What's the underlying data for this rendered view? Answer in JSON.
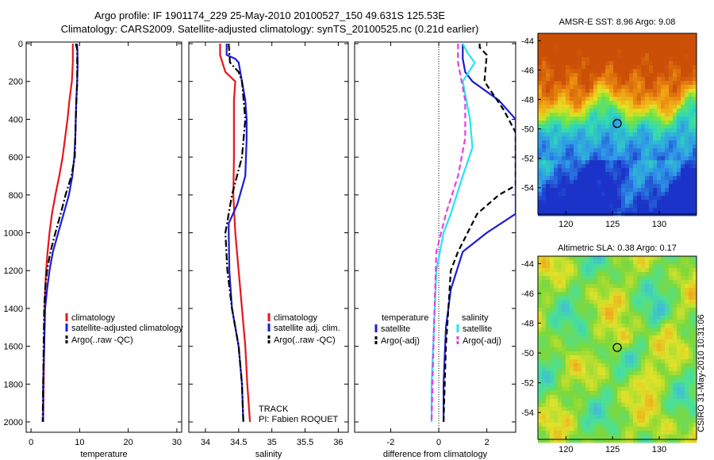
{
  "header": {
    "title_line1": "Argo profile: IF 1901174_229 25-May-2010 20100527_150 49.631S 125.53E",
    "title_line2": "Climatology: CARS2009. Satellite-adjusted climatology: synTS_20100525.nc (0.21d earlier)"
  },
  "sidebar": {
    "stamp": "CSIRO 31-May-2010 10:31:06"
  },
  "colors": {
    "red": "#e8141b",
    "blue": "#1c1cd6",
    "black": "#000000",
    "cyan": "#22e6f0",
    "magenta": "#e83be8"
  },
  "chart_data": [
    {
      "id": "temperature",
      "type": "line",
      "xlabel": "temperature",
      "ylabel": "",
      "xlim": [
        -1,
        31
      ],
      "ylim": [
        2050,
        0
      ],
      "xticks": [
        0,
        10,
        20,
        30
      ],
      "yticks": [
        0,
        200,
        400,
        600,
        800,
        1000,
        1200,
        1400,
        1600,
        1800,
        2000
      ],
      "legend": {
        "position": "lower-right",
        "entries": [
          "climatology",
          "satellite-adjusted climatology",
          "Argo(..raw -QC)"
        ]
      },
      "series": [
        {
          "name": "climatology",
          "color": "red",
          "dash": "solid",
          "points": [
            [
              8.6,
              0
            ],
            [
              8.6,
              100
            ],
            [
              8.4,
              200
            ],
            [
              7.9,
              300
            ],
            [
              7.5,
              400
            ],
            [
              7.0,
              500
            ],
            [
              6.5,
              600
            ],
            [
              5.8,
              700
            ],
            [
              5.0,
              800
            ],
            [
              4.3,
              900
            ],
            [
              3.8,
              1000
            ],
            [
              3.4,
              1100
            ],
            [
              3.1,
              1200
            ],
            [
              2.9,
              1300
            ],
            [
              2.8,
              1400
            ],
            [
              2.7,
              1600
            ],
            [
              2.6,
              1800
            ],
            [
              2.5,
              2000
            ]
          ]
        },
        {
          "name": "satellite-adjusted climatology",
          "color": "blue",
          "dash": "solid",
          "points": [
            [
              9.5,
              0
            ],
            [
              9.6,
              100
            ],
            [
              9.5,
              200
            ],
            [
              9.3,
              300
            ],
            [
              9.2,
              400
            ],
            [
              9.1,
              500
            ],
            [
              8.9,
              600
            ],
            [
              8.5,
              700
            ],
            [
              7.8,
              800
            ],
            [
              6.7,
              900
            ],
            [
              5.6,
              1000
            ],
            [
              4.5,
              1100
            ],
            [
              3.8,
              1200
            ],
            [
              3.3,
              1300
            ],
            [
              2.9,
              1400
            ],
            [
              2.7,
              1600
            ],
            [
              2.5,
              1800
            ],
            [
              2.5,
              2000
            ]
          ]
        },
        {
          "name": "Argo(..raw -QC)",
          "color": "black",
          "dash": "dashdot",
          "points": [
            [
              9.2,
              0
            ],
            [
              9.5,
              30
            ],
            [
              9.5,
              200
            ],
            [
              9.2,
              400
            ],
            [
              9.0,
              600
            ],
            [
              8.3,
              700
            ],
            [
              7.1,
              800
            ],
            [
              6.1,
              900
            ],
            [
              5.0,
              1000
            ],
            [
              4.0,
              1100
            ],
            [
              3.3,
              1200
            ],
            [
              2.9,
              1300
            ],
            [
              2.7,
              1400
            ],
            [
              2.6,
              1600
            ],
            [
              2.5,
              1800
            ],
            [
              2.4,
              2000
            ]
          ]
        }
      ]
    },
    {
      "id": "salinity",
      "type": "line",
      "xlabel": "salinity",
      "ylabel": "",
      "xlim": [
        33.75,
        36.15
      ],
      "ylim": [
        2050,
        0
      ],
      "xticks": [
        34,
        34.5,
        35,
        35.5,
        36
      ],
      "legend": {
        "position": "lower-right",
        "entries": [
          "climatology",
          "satellite adj. clim.",
          "Argo(..raw -QC)"
        ]
      },
      "annotations": [
        "TRACK",
        "PI: Fabien ROQUET"
      ],
      "series": [
        {
          "name": "climatology",
          "color": "red",
          "dash": "solid",
          "points": [
            [
              34.22,
              0
            ],
            [
              34.22,
              60
            ],
            [
              34.3,
              150
            ],
            [
              34.45,
              200
            ],
            [
              34.43,
              300
            ],
            [
              34.43,
              600
            ],
            [
              34.42,
              800
            ],
            [
              34.45,
              1000
            ],
            [
              34.5,
              1200
            ],
            [
              34.55,
              1400
            ],
            [
              34.6,
              1600
            ],
            [
              34.63,
              1800
            ],
            [
              34.67,
              2000
            ]
          ]
        },
        {
          "name": "satellite adj. clim.",
          "color": "blue",
          "dash": "solid",
          "points": [
            [
              34.32,
              0
            ],
            [
              34.32,
              60
            ],
            [
              34.45,
              80
            ],
            [
              34.5,
              100
            ],
            [
              34.55,
              200
            ],
            [
              34.6,
              300
            ],
            [
              34.62,
              400
            ],
            [
              34.62,
              500
            ],
            [
              34.6,
              700
            ],
            [
              34.48,
              850
            ],
            [
              34.35,
              950
            ],
            [
              34.35,
              1000
            ],
            [
              34.36,
              1200
            ],
            [
              34.4,
              1400
            ],
            [
              34.5,
              1600
            ],
            [
              34.55,
              1800
            ],
            [
              34.57,
              2000
            ]
          ]
        },
        {
          "name": "Argo(..raw -QC)",
          "color": "black",
          "dash": "dashdot",
          "points": [
            [
              34.35,
              0
            ],
            [
              34.37,
              100
            ],
            [
              34.5,
              150
            ],
            [
              34.55,
              200
            ],
            [
              34.6,
              400
            ],
            [
              34.55,
              600
            ],
            [
              34.4,
              800
            ],
            [
              34.3,
              1000
            ],
            [
              34.33,
              1200
            ],
            [
              34.4,
              1400
            ],
            [
              34.5,
              1600
            ],
            [
              34.55,
              1800
            ],
            [
              34.57,
              2000
            ]
          ]
        }
      ]
    },
    {
      "id": "difference",
      "type": "line",
      "xlabel": "difference from climatology",
      "ylabel": "",
      "xlim": [
        -3.5,
        3.2
      ],
      "ylim": [
        2050,
        0
      ],
      "xticks": [
        -2,
        0,
        2
      ],
      "legend": {
        "position": "lower-center",
        "temperature_title": "temperature",
        "salinity_title": "salinity",
        "entries": [
          "satellite",
          "Argo(-adj)",
          "satellite",
          "Argo(-adj)"
        ]
      },
      "series": [
        {
          "name": "temperature satellite",
          "color": "blue",
          "dash": "solid",
          "points": [
            [
              1.0,
              0
            ],
            [
              1.0,
              80
            ],
            [
              1.1,
              150
            ],
            [
              1.4,
              200
            ],
            [
              2.5,
              300
            ],
            [
              3.2,
              400
            ],
            [
              3.2,
              900
            ],
            [
              2.0,
              1000
            ],
            [
              1.0,
              1100
            ],
            [
              0.5,
              1300
            ],
            [
              0.3,
              1500
            ],
            [
              0.2,
              1800
            ],
            [
              0.2,
              2000
            ]
          ]
        },
        {
          "name": "temperature Argo(-adj)",
          "color": "black",
          "dash": "dashed",
          "points": [
            [
              1.7,
              0
            ],
            [
              1.7,
              20
            ],
            [
              2.0,
              60
            ],
            [
              1.9,
              200
            ],
            [
              2.7,
              350
            ],
            [
              3.2,
              470
            ],
            [
              3.2,
              750
            ],
            [
              2.5,
              800
            ],
            [
              1.6,
              900
            ],
            [
              0.8,
              1100
            ],
            [
              0.5,
              1200
            ],
            [
              0.4,
              1400
            ],
            [
              0.3,
              1600
            ],
            [
              0.2,
              2000
            ]
          ]
        },
        {
          "name": "salinity satellite",
          "color": "cyan",
          "dash": "solid",
          "points": [
            [
              1.0,
              0
            ],
            [
              1.2,
              50
            ],
            [
              1.5,
              100
            ],
            [
              1.0,
              200
            ],
            [
              1.3,
              400
            ],
            [
              1.4,
              550
            ],
            [
              1.0,
              700
            ],
            [
              0.5,
              900
            ],
            [
              0.2,
              1000
            ],
            [
              -0.1,
              1200
            ],
            [
              -0.2,
              1500
            ],
            [
              -0.3,
              1800
            ],
            [
              -0.3,
              2000
            ]
          ]
        },
        {
          "name": "salinity Argo(-adj)",
          "color": "magenta",
          "dash": "dashed",
          "points": [
            [
              0.8,
              0
            ],
            [
              0.8,
              100
            ],
            [
              1.1,
              300
            ],
            [
              1.1,
              500
            ],
            [
              0.8,
              700
            ],
            [
              0.3,
              900
            ],
            [
              -0.1,
              1100
            ],
            [
              -0.2,
              1500
            ],
            [
              -0.3,
              2000
            ]
          ]
        }
      ]
    },
    {
      "id": "sst_map",
      "type": "heatmap",
      "title": "AMSR-E SST: 8.96 Argo: 9.08",
      "xlim": [
        117,
        134
      ],
      "ylim": [
        -55.8,
        -43.5
      ],
      "xticks": [
        120,
        125,
        130
      ],
      "yticks": [
        -44,
        -46,
        -48,
        -50,
        -52,
        -54
      ],
      "marker": [
        125.5,
        -49.63
      ],
      "colormap": [
        "#1b33c8",
        "#2f98e8",
        "#2fd9b9",
        "#78e43b",
        "#e6e022",
        "#f09a12",
        "#cc4f07"
      ]
    },
    {
      "id": "sla_map",
      "type": "heatmap",
      "title": "Altimetric SLA: 0.38 Argo: 0.17",
      "xlim": [
        117,
        134
      ],
      "ylim": [
        -55.8,
        -43.5
      ],
      "xticks": [
        120,
        125,
        130
      ],
      "yticks": [
        -44,
        -46,
        -48,
        -50,
        -52,
        -54
      ],
      "marker": [
        125.5,
        -49.63
      ],
      "colormap": [
        "#2f60e8",
        "#3fbcd8",
        "#49e098",
        "#7ed83a",
        "#e0e22a",
        "#f0a01a",
        "#d44a10"
      ]
    }
  ]
}
